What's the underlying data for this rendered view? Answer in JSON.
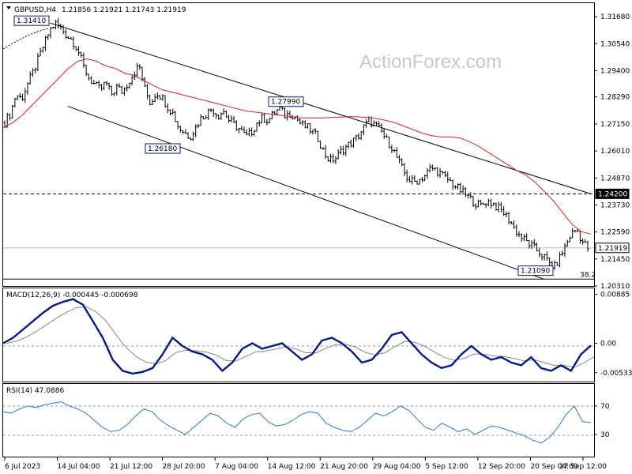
{
  "header": {
    "symbol": "GBPUSD,H4",
    "ohlc": "1.21856 1.21921 1.21743 1.21919"
  },
  "watermark": "ActionForex.com",
  "chart_data": [
    {
      "type": "candlestick",
      "title": "GBPUSD,H4",
      "price_axis": {
        "ticks": [
          "1.31680",
          "1.30540",
          "1.29400",
          "1.28290",
          "1.27150",
          "1.26010",
          "1.24870",
          "1.23730",
          "1.22590",
          "1.21450",
          "1.20310"
        ],
        "ylim": [
          1.2031,
          1.3225
        ]
      },
      "time_axis": {
        "ticks": [
          "6 Jul 2023",
          "14 Jul 04:00",
          "21 Jul 12:00",
          "28 Jul 20:00",
          "7 Aug 04:00",
          "14 Aug 12:00",
          "21 Aug 20:00",
          "29 Aug 04:00",
          "5 Sep 12:00",
          "12 Sep 20:00",
          "20 Sep 04:00",
          "27 Sep 12:00"
        ]
      },
      "close_path": [
        1.272,
        1.276,
        1.284,
        1.282,
        1.288,
        1.293,
        1.299,
        1.305,
        1.311,
        1.3141,
        1.312,
        1.309,
        1.307,
        1.303,
        1.296,
        1.291,
        1.288,
        1.286,
        1.289,
        1.284,
        1.287,
        1.285,
        1.289,
        1.293,
        1.296,
        1.286,
        1.28,
        1.285,
        1.283,
        1.279,
        1.276,
        1.27,
        1.268,
        1.266,
        1.27,
        1.274,
        1.276,
        1.278,
        1.275,
        1.277,
        1.273,
        1.271,
        1.269,
        1.266,
        1.268,
        1.272,
        1.274,
        1.273,
        1.276,
        1.278,
        1.275,
        1.276,
        1.274,
        1.271,
        1.27,
        1.268,
        1.265,
        1.259,
        1.256,
        1.257,
        1.26,
        1.262,
        1.264,
        1.266,
        1.27,
        1.273,
        1.271,
        1.269,
        1.265,
        1.262,
        1.257,
        1.252,
        1.248,
        1.247,
        1.248,
        1.25,
        1.253,
        1.252,
        1.25,
        1.248,
        1.246,
        1.244,
        1.242,
        1.24,
        1.238,
        1.237,
        1.239,
        1.238,
        1.236,
        1.234,
        1.231,
        1.227,
        1.224,
        1.222,
        1.22,
        1.218,
        1.216,
        1.213,
        1.2109,
        1.215,
        1.22,
        1.225,
        1.227,
        1.222,
        1.2192
      ],
      "moving_average_path": [
        1.27,
        1.272,
        1.275,
        1.279,
        1.283,
        1.287,
        1.291,
        1.295,
        1.298,
        1.299,
        1.298,
        1.296,
        1.295,
        1.293,
        1.292,
        1.29,
        1.288,
        1.286,
        1.285,
        1.284,
        1.283,
        1.282,
        1.281,
        1.28,
        1.279,
        1.278,
        1.277,
        1.2765,
        1.276,
        1.2755,
        1.275,
        1.2745,
        1.274,
        1.274,
        1.274,
        1.2742,
        1.2744,
        1.2746,
        1.2745,
        1.2742,
        1.2738,
        1.273,
        1.272,
        1.2705,
        1.269,
        1.2675,
        1.2665,
        1.266,
        1.266,
        1.2655,
        1.264,
        1.262,
        1.2595,
        1.257,
        1.2545,
        1.252,
        1.25,
        1.247,
        1.243,
        1.239,
        1.234,
        1.229,
        1.226,
        1.225
      ],
      "annotations": [
        {
          "text": "1.31410",
          "kind": "high"
        },
        {
          "text": "1.26180",
          "kind": "low"
        },
        {
          "text": "1.27990",
          "kind": "high"
        },
        {
          "text": "1.21090",
          "kind": "low"
        },
        {
          "text": "38.2",
          "kind": "fibonacci"
        }
      ],
      "levels": [
        {
          "label": "1.24200",
          "value": 1.242,
          "style": "dashed"
        },
        {
          "label": "1.21919",
          "value": 1.21919,
          "style": "current"
        },
        {
          "value": 1.206,
          "style": "solid"
        }
      ],
      "channel": {
        "upper": [
          [
            1.3141,
            0.08
          ],
          [
            1.242,
            1.0
          ]
        ],
        "lower": [
          [
            1.279,
            0.11
          ],
          [
            1.206,
            0.92
          ]
        ]
      }
    },
    {
      "type": "line",
      "title": "MACD(12,26,9) -0.000445 -0.000698",
      "axis": {
        "ticks": [
          "0.00885",
          "0.00",
          "-0.005334"
        ],
        "ylim": [
          -0.0068,
          0.0098
        ]
      },
      "macd": [
        0.0,
        0.001,
        0.0025,
        0.004,
        0.0055,
        0.0068,
        0.0075,
        0.008,
        0.007,
        0.004,
        0.001,
        -0.003,
        -0.005,
        -0.0055,
        -0.0052,
        -0.0045,
        -0.002,
        0.001,
        -0.0005,
        -0.0015,
        -0.002,
        -0.003,
        -0.005,
        -0.0035,
        -0.001,
        0.0,
        -0.001,
        -0.0005,
        0.0,
        -0.0015,
        -0.003,
        -0.002,
        0.0005,
        0.001,
        0.0,
        -0.0015,
        -0.0035,
        -0.003,
        -0.001,
        0.0015,
        0.002,
        0.0,
        -0.002,
        -0.0035,
        -0.0045,
        -0.004,
        -0.002,
        -0.0005,
        -0.002,
        -0.003,
        -0.0025,
        -0.0035,
        -0.004,
        -0.0025,
        -0.0045,
        -0.005,
        -0.004,
        -0.005,
        -0.002,
        -0.0004
      ],
      "signal_note": "signal line follows macd with lag"
    },
    {
      "type": "line",
      "title": "RSI(14) 47.0886",
      "axis": {
        "ticks": [
          "70",
          "30"
        ],
        "ylim": [
          0,
          100
        ]
      },
      "rsi": [
        62,
        60,
        66,
        70,
        68,
        72,
        74,
        76,
        70,
        66,
        60,
        50,
        40,
        34,
        36,
        44,
        56,
        66,
        62,
        50,
        42,
        36,
        30,
        40,
        50,
        60,
        56,
        46,
        40,
        52,
        58,
        60,
        48,
        42,
        44,
        50,
        58,
        62,
        60,
        46,
        40,
        36,
        34,
        40,
        50,
        60,
        56,
        62,
        70,
        64,
        52,
        40,
        36,
        46,
        40,
        34,
        38,
        30,
        36,
        42,
        40,
        36,
        32,
        28,
        22,
        18,
        26,
        40,
        58,
        70,
        48,
        47
      ]
    }
  ]
}
